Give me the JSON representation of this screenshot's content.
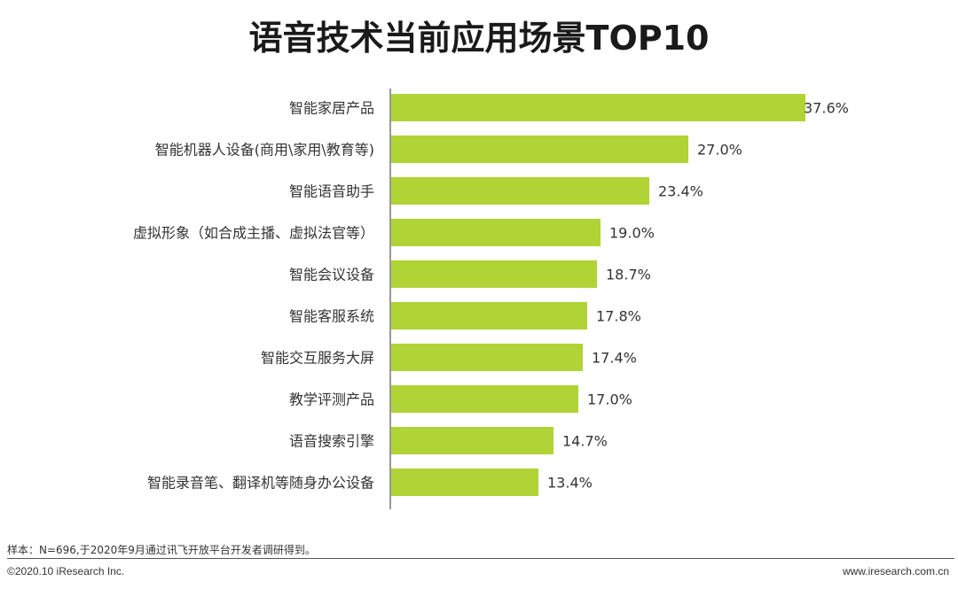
{
  "title": "语音技术当前应用场景TOP10",
  "chart_data": {
    "type": "bar",
    "orientation": "horizontal",
    "title": "语音技术当前应用场景TOP10",
    "categories": [
      "智能家居产品",
      "智能机器人设备(商用\\家用\\教育等)",
      "智能语音助手",
      "虚拟形象（如合成主播、虚拟法官等）",
      "智能会议设备",
      "智能客服系统",
      "智能交互服务大屏",
      "教学评测产品",
      "语音搜索引擎",
      "智能录音笔、翻译机等随身办公设备"
    ],
    "values": [
      37.6,
      27.0,
      23.4,
      19.0,
      18.7,
      17.8,
      17.4,
      17.0,
      14.7,
      13.4
    ],
    "value_labels": [
      "37.6%",
      "27.0%",
      "23.4%",
      "19.0%",
      "18.7%",
      "17.8%",
      "17.4%",
      "17.0%",
      "14.7%",
      "13.4%"
    ],
    "unit": "%",
    "xlim": [
      0,
      37.6
    ],
    "grid": false,
    "bar_color": "#b0d335",
    "axis_color": "#777777"
  },
  "footer": {
    "source_note": "样本：N=696,于2020年9月通过讯飞开放平台开发者调研得到。",
    "copyright": "©2020.10 iResearch Inc.",
    "website": "www.iresearch.com.cn"
  }
}
